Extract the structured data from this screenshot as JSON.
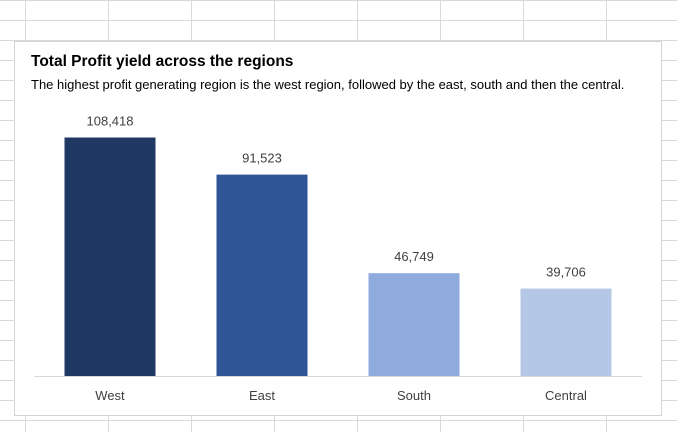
{
  "chart_data": {
    "type": "bar",
    "title": "Total Profit yield across the regions",
    "subtitle": "The highest profit generating region is the west region, followed by the east, south and then the central.",
    "categories": [
      "West",
      "East",
      "South",
      "Central"
    ],
    "values": [
      108418,
      91523,
      46749,
      39706
    ],
    "data_labels": [
      "108,418",
      "91,523",
      "46,749",
      "39,706"
    ],
    "bar_colors": [
      "#203864",
      "#2f5597",
      "#8faadc",
      "#b4c7e7"
    ],
    "ylim": [
      0,
      120000
    ],
    "grid": false,
    "legend": "none"
  }
}
